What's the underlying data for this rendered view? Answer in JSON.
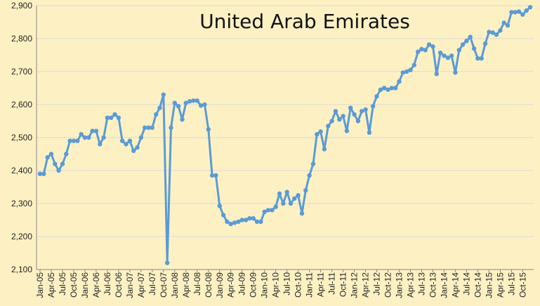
{
  "chart_data": {
    "type": "line",
    "title": "United Arab Emirates",
    "xlabel": "",
    "ylabel": "",
    "ylim": [
      2100,
      2900
    ],
    "yticks": [
      "2,100",
      "2,200",
      "2,300",
      "2,400",
      "2,500",
      "2,600",
      "2,700",
      "2,800",
      "2,900"
    ],
    "xtick_labels": [
      "Jan-05",
      "Apr-05",
      "Jul-05",
      "Oct-05",
      "Jan-06",
      "Apr-06",
      "Jul-06",
      "Oct-06",
      "Jan-07",
      "Apr-07",
      "Jul-07",
      "Oct-07",
      "Jan-08",
      "Apr-08",
      "Jul-08",
      "Oct-08",
      "Jan-09",
      "Apr-09",
      "Jul-09",
      "Oct-09",
      "Jan-10",
      "Apr-10",
      "Jul-10",
      "Oct-10",
      "Jan-11",
      "Apr-11",
      "Jul-11",
      "Oct-11",
      "Jan-12",
      "Apr-12",
      "Jul-12",
      "Oct-12",
      "Jan-13",
      "Apr-13",
      "Jul-13",
      "Oct-13",
      "Jan-14",
      "Apr-14",
      "Jul-14",
      "Oct-14",
      "Jan-15",
      "Apr-15",
      "Jul-15",
      "Oct-15"
    ],
    "grid": true,
    "legend": "none",
    "line_color": "#5b9bd5",
    "series": [
      {
        "values": [
          2390,
          2390,
          2440,
          2450,
          2420,
          2400,
          2420,
          2450,
          2490,
          2490,
          2490,
          2510,
          2500,
          2500,
          2520,
          2520,
          2480,
          2500,
          2560,
          2560,
          2570,
          2560,
          2490,
          2480,
          2490,
          2460,
          2470,
          2500,
          2530,
          2530,
          2530,
          2570,
          2590,
          2630,
          2120,
          2530,
          2605,
          2595,
          2555,
          2605,
          2610,
          2612,
          2612,
          2597,
          2600,
          2525,
          2385,
          2385,
          2293,
          2265,
          2245,
          2238,
          2242,
          2245,
          2250,
          2250,
          2255,
          2255,
          2245,
          2245,
          2275,
          2280,
          2280,
          2290,
          2330,
          2300,
          2335,
          2300,
          2315,
          2325,
          2270,
          2340,
          2385,
          2420,
          2510,
          2518,
          2465,
          2535,
          2550,
          2580,
          2555,
          2565,
          2520,
          2590,
          2570,
          2550,
          2580,
          2585,
          2515,
          2595,
          2625,
          2645,
          2650,
          2645,
          2650,
          2650,
          2670,
          2697,
          2700,
          2705,
          2720,
          2760,
          2768,
          2765,
          2782,
          2776,
          2693,
          2757,
          2748,
          2742,
          2748,
          2697,
          2765,
          2782,
          2793,
          2805,
          2770,
          2740,
          2740,
          2785,
          2820,
          2818,
          2812,
          2825,
          2848,
          2840,
          2880,
          2880,
          2882,
          2873,
          2885,
          2895
        ]
      }
    ]
  }
}
